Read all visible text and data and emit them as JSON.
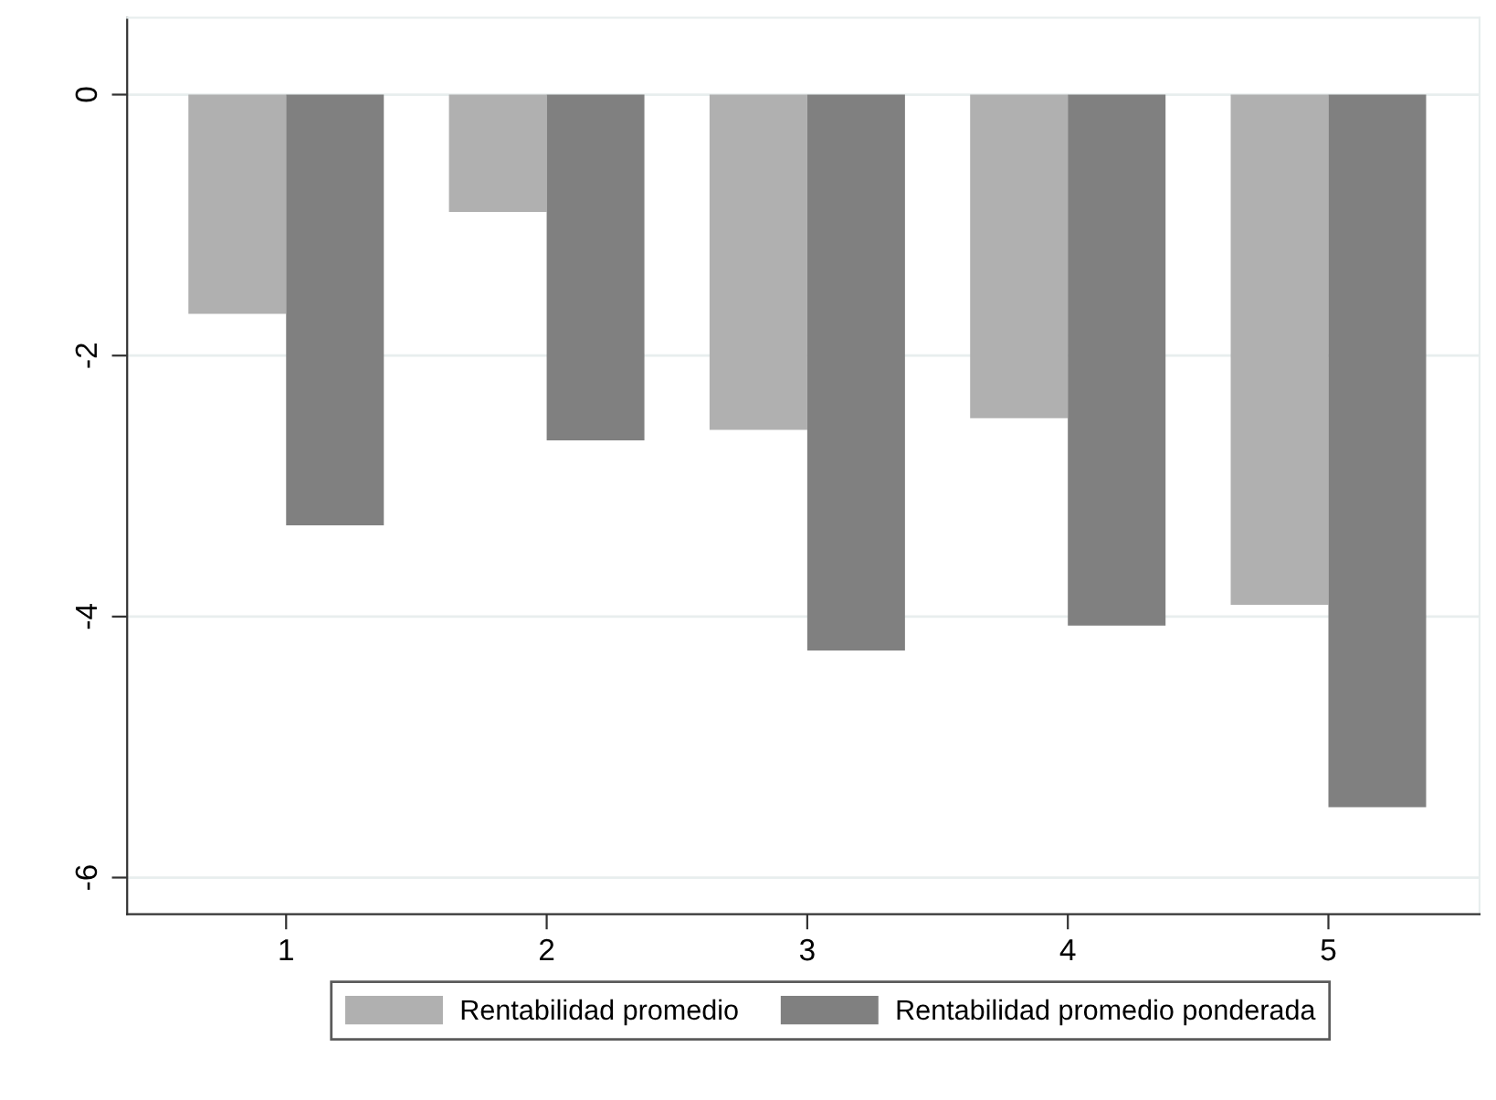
{
  "chart_data": {
    "type": "bar",
    "categories": [
      "1",
      "2",
      "3",
      "4",
      "5"
    ],
    "series": [
      {
        "name": "Rentabilidad promedio",
        "color": "#b0b0b0",
        "values": [
          -1.68,
          -0.9,
          -2.57,
          -2.48,
          -3.91
        ]
      },
      {
        "name": "Rentabilidad promedio ponderada",
        "color": "#808080",
        "values": [
          -3.3,
          -2.65,
          -4.26,
          -4.07,
          -5.46
        ]
      }
    ],
    "ylim": [
      -6.28,
      0.59
    ],
    "yticks": [
      0,
      -2,
      -4,
      -6
    ],
    "grid": "y",
    "legend": "bottom"
  }
}
